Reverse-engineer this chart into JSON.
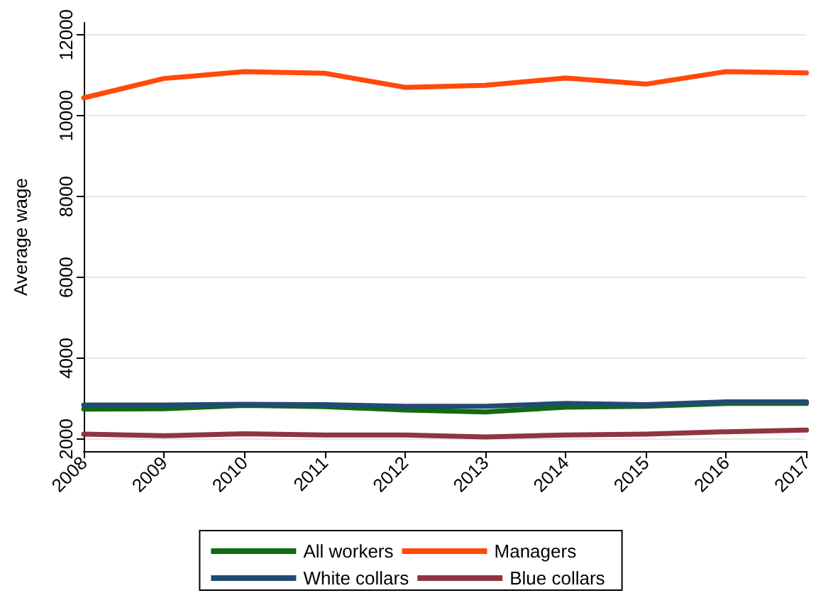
{
  "chart_data": {
    "type": "line",
    "ylabel": "Average wage",
    "categories": [
      "2008",
      "2009",
      "2010",
      "2011",
      "2012",
      "2013",
      "2014",
      "2015",
      "2016",
      "2017"
    ],
    "series": [
      {
        "name": "All workers",
        "color": "#106b10",
        "values": [
          2740,
          2750,
          2830,
          2800,
          2720,
          2670,
          2790,
          2810,
          2880,
          2880
        ]
      },
      {
        "name": "Managers",
        "color": "#ff4a0a",
        "values": [
          10440,
          10920,
          11090,
          11050,
          10700,
          10750,
          10930,
          10780,
          11090,
          11060
        ]
      },
      {
        "name": "White collars",
        "color": "#224b73",
        "values": [
          2840,
          2840,
          2860,
          2850,
          2810,
          2810,
          2880,
          2850,
          2920,
          2920
        ]
      },
      {
        "name": "Blue collars",
        "color": "#8e3640",
        "values": [
          2120,
          2080,
          2130,
          2100,
          2100,
          2050,
          2100,
          2120,
          2180,
          2220
        ]
      }
    ],
    "ylim": [
      1700,
      12300
    ],
    "yticks": [
      2000,
      4000,
      6000,
      8000,
      10000,
      12000
    ],
    "grid": "y",
    "legend": "bottom",
    "marker": "none",
    "line_style": "solid"
  }
}
